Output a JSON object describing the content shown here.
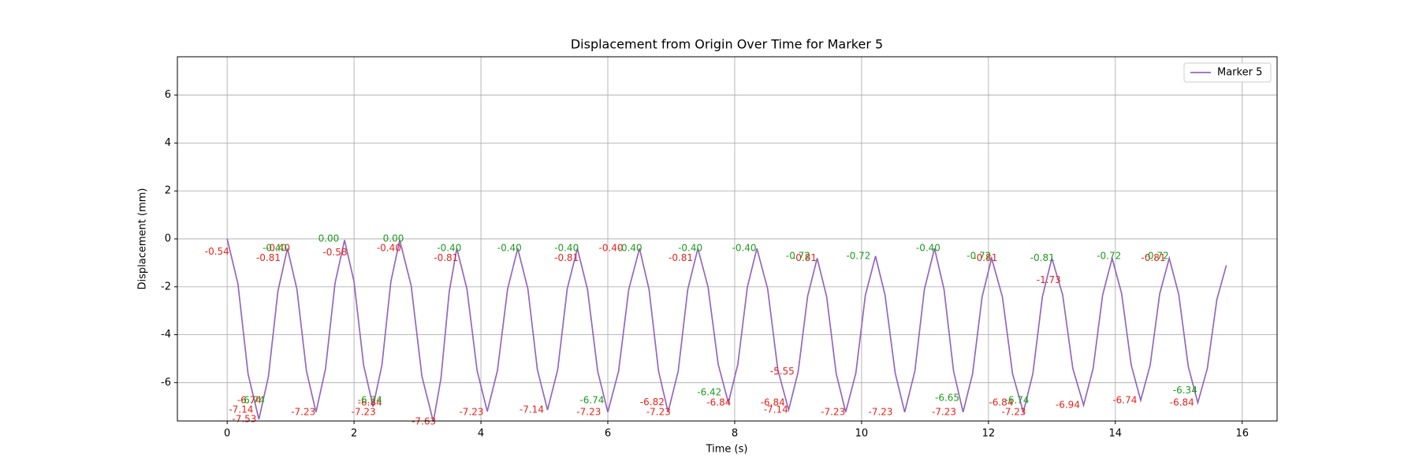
{
  "chart_data": {
    "type": "line",
    "title": "Displacement from Origin Over Time for Marker 5",
    "x_label": "Time (s)",
    "y_label": "Displacement (mm)",
    "xlim": [
      -0.785,
      16.55
    ],
    "ylim": [
      -7.6,
      7.6
    ],
    "xticks": [
      0,
      2,
      4,
      6,
      8,
      10,
      12,
      14,
      16
    ],
    "yticks": [
      -6,
      -4,
      -2,
      0,
      2,
      4,
      6
    ],
    "grid": true,
    "legend": "upper right",
    "series": [
      {
        "name": "Marker 5",
        "color": "#9467bd",
        "x": [
          0,
          0.17,
          0.33,
          0.5,
          0.65,
          0.8,
          0.95,
          1.1,
          1.25,
          1.4,
          1.55,
          1.7,
          1.85,
          2.0,
          2.15,
          2.3,
          2.44,
          2.58,
          2.72,
          2.9,
          3.07,
          3.25,
          3.37,
          3.5,
          3.62,
          3.78,
          3.94,
          4.1,
          4.26,
          4.42,
          4.58,
          4.74,
          4.89,
          5.05,
          5.21,
          5.36,
          5.52,
          5.68,
          5.84,
          6.0,
          6.17,
          6.33,
          6.5,
          6.65,
          6.8,
          6.95,
          7.11,
          7.26,
          7.42,
          7.58,
          7.74,
          7.9,
          8.05,
          8.2,
          8.35,
          8.52,
          8.68,
          8.85,
          9.0,
          9.15,
          9.3,
          9.45,
          9.6,
          9.75,
          9.91,
          10.06,
          10.22,
          10.37,
          10.53,
          10.68,
          10.84,
          10.99,
          11.15,
          11.3,
          11.45,
          11.6,
          11.75,
          11.9,
          12.05,
          12.22,
          12.38,
          12.55,
          12.7,
          12.85,
          13.0,
          13.17,
          13.33,
          13.5,
          13.65,
          13.8,
          13.95,
          14.1,
          14.25,
          14.4,
          14.55,
          14.7,
          14.85,
          15.0,
          15.15,
          15.3,
          15.45,
          15.6,
          15.75
        ],
        "values": [
          0,
          -1.88,
          -5.65,
          -7.53,
          -5.75,
          -2.18,
          -0.4,
          -2.11,
          -5.52,
          -7.23,
          -5.43,
          -1.85,
          -0.05,
          -1.79,
          -5.26,
          -7.0,
          -5.26,
          -1.79,
          -0.05,
          -1.95,
          -5.74,
          -7.63,
          -5.82,
          -2.21,
          -0.4,
          -2.1,
          -5.5,
          -7.2,
          -5.5,
          -2.1,
          -0.4,
          -2.09,
          -5.46,
          -7.14,
          -5.46,
          -2.09,
          -0.4,
          -2.11,
          -5.52,
          -7.23,
          -5.52,
          -2.11,
          -0.4,
          -2.11,
          -5.52,
          -7.23,
          -5.52,
          -2.11,
          -0.4,
          -2.01,
          -5.23,
          -6.84,
          -5.23,
          -2.01,
          -0.4,
          -2.09,
          -5.46,
          -7.14,
          -5.56,
          -2.39,
          -0.81,
          -2.42,
          -5.62,
          -7.23,
          -5.6,
          -2.35,
          -0.72,
          -2.35,
          -5.6,
          -7.23,
          -5.52,
          -2.11,
          -0.4,
          -2.11,
          -5.52,
          -7.23,
          -5.63,
          -2.42,
          -0.81,
          -2.42,
          -5.63,
          -7.23,
          -5.63,
          -2.42,
          -0.81,
          -2.34,
          -5.41,
          -6.94,
          -5.41,
          -2.34,
          -0.81,
          -2.29,
          -5.26,
          -6.74,
          -5.26,
          -2.29,
          -0.81,
          -2.32,
          -5.33,
          -6.84,
          -5.41,
          -2.54,
          -1.1
        ]
      }
    ],
    "annotations": [
      {
        "color": "#e8231d",
        "x": [
          -0.16,
          0.22,
          0.27,
          0.35,
          0.65,
          0.8,
          1.2,
          1.7,
          2.15,
          2.25,
          2.55,
          3.1,
          3.45,
          3.85,
          4.8,
          5.35,
          5.7,
          6.05,
          6.7,
          6.8,
          7.15,
          7.75,
          8.6,
          8.65,
          8.75,
          9.1,
          9.55,
          10.3,
          11.3,
          11.95,
          12.2,
          12.4,
          12.95,
          13.25,
          14.15,
          14.6,
          15.05
        ],
        "values": [
          -0.54,
          -7.14,
          -7.53,
          -6.74,
          -0.81,
          -0.4,
          -7.23,
          -0.58,
          -7.23,
          -6.84,
          -0.4,
          -7.63,
          -0.81,
          -7.23,
          -7.14,
          -0.81,
          -7.23,
          -0.4,
          -6.82,
          -7.23,
          -0.81,
          -6.84,
          -6.84,
          -7.14,
          -5.55,
          -0.81,
          -7.23,
          -7.23,
          -7.23,
          -0.81,
          -6.84,
          -7.23,
          -1.73,
          -6.94,
          -6.74,
          -0.81,
          -6.84
        ],
        "value_labels": [
          "-0.54",
          "-7.14",
          "-7.53",
          "-6.74",
          "-0.81",
          "-0.40",
          "-7.23",
          "-0.58",
          "-7.23",
          "-6.84",
          "-0.40",
          "-7.63",
          "-0.81",
          "-7.23",
          "-7.14",
          "-0.81",
          "-7.23",
          "-0.40",
          "-6.82",
          "-7.23",
          "-0.81",
          "-6.84",
          "-6.84",
          "-7.14",
          "-5.55",
          "-0.81",
          "-7.23",
          "-7.23",
          "-7.23",
          "-0.81",
          "-6.84",
          "-7.23",
          "-1.73",
          "-6.94",
          "-6.74",
          "-0.81",
          "-6.84"
        ]
      },
      {
        "color": "#1f9a1f",
        "x": [
          1.6,
          2.62,
          0.75,
          0.4,
          2.25,
          3.5,
          4.45,
          5.35,
          5.75,
          6.35,
          7.3,
          7.6,
          8.15,
          9.0,
          9.95,
          11.05,
          11.35,
          11.85,
          12.45,
          12.85,
          13.9,
          14.65,
          15.1
        ],
        "values": [
          0,
          0,
          -0.4,
          -6.74,
          -6.74,
          -0.4,
          -0.4,
          -0.4,
          -6.74,
          -0.4,
          -0.4,
          -6.42,
          -0.4,
          -0.72,
          -0.72,
          -0.4,
          -6.65,
          -0.72,
          -6.74,
          -0.81,
          -0.72,
          -0.72,
          -6.34
        ],
        "value_labels": [
          "0.00",
          "0.00",
          "-0.40",
          "-6.74",
          "-6.74",
          "-0.40",
          "-0.40",
          "-0.40",
          "-6.74",
          "-0.40",
          "-0.40",
          "-6.42",
          "-0.40",
          "-0.72",
          "-0.72",
          "-0.40",
          "-6.65",
          "-0.72",
          "-6.74",
          "-0.81",
          "-0.72",
          "-0.72",
          "-6.34"
        ]
      }
    ]
  }
}
